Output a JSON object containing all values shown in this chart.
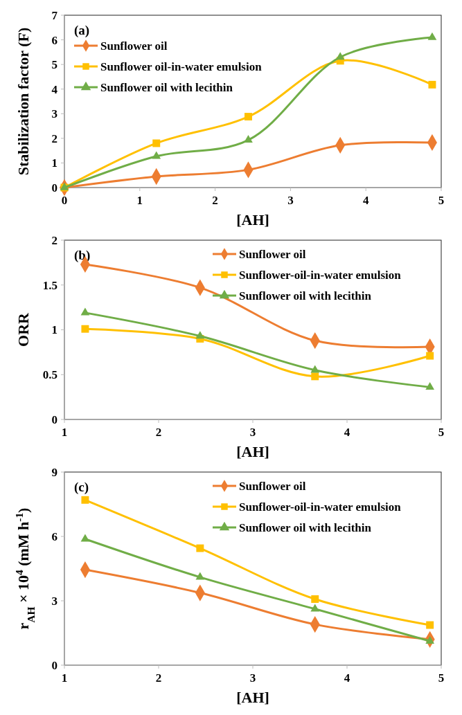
{
  "chart_data": [
    {
      "type": "line",
      "xlabel": "[AH]",
      "ylabel": "Stabilization factor (F)",
      "annotations": [
        "(a)"
      ],
      "x": [
        0,
        1.22,
        2.44,
        3.66,
        4.88
      ],
      "xlim": [
        0,
        5
      ],
      "xticks": [
        0,
        1,
        2,
        3,
        4,
        5
      ],
      "ylim": [
        0,
        7
      ],
      "yticks": [
        0,
        1,
        2,
        3,
        4,
        5,
        6,
        7
      ],
      "legend": "top left",
      "line_style": "solid",
      "series": [
        {
          "name": "Sunflower oil",
          "color": "#ed7d31",
          "marker": "diamond",
          "values": [
            0,
            0.45,
            0.72,
            1.72,
            1.83
          ]
        },
        {
          "name": "Sunflower oil-in-water emulsion",
          "color": "#ffc000",
          "marker": "square",
          "values": [
            0,
            1.8,
            2.88,
            5.15,
            4.18
          ]
        },
        {
          "name": "Sunflower oil with lecithin",
          "color": "#70ad47",
          "marker": "triangle",
          "values": [
            0,
            1.27,
            1.93,
            5.3,
            6.1
          ]
        }
      ]
    },
    {
      "type": "line",
      "xlabel": "[AH]",
      "ylabel": "ORR",
      "annotations": [
        "(b)"
      ],
      "x": [
        1.22,
        2.44,
        3.66,
        4.88
      ],
      "xlim": [
        1,
        5
      ],
      "xticks": [
        1,
        2,
        3,
        4,
        5
      ],
      "ylim": [
        0,
        2
      ],
      "yticks": [
        0,
        0.5,
        1,
        1.5,
        2
      ],
      "legend": "top right",
      "line_style": "solid",
      "series": [
        {
          "name": "Sunflower oil",
          "color": "#ed7d31",
          "marker": "diamond",
          "values": [
            1.73,
            1.47,
            0.88,
            0.81
          ]
        },
        {
          "name": "Sunflower-oil-in-water emulsion",
          "color": "#ffc000",
          "marker": "square",
          "values": [
            1.01,
            0.9,
            0.48,
            0.71
          ]
        },
        {
          "name": "Sunflower oil with lecithin",
          "color": "#70ad47",
          "marker": "triangle",
          "values": [
            1.19,
            0.93,
            0.55,
            0.36
          ]
        }
      ]
    },
    {
      "type": "line",
      "xlabel": "[AH]",
      "ylabel": "r$_{AH}$ × 10$^{4}$ (mM h$^{-1}$)",
      "annotations": [
        "(c)"
      ],
      "x": [
        1.22,
        2.44,
        3.66,
        4.88
      ],
      "xlim": [
        1,
        5
      ],
      "xticks": [
        1,
        2,
        3,
        4,
        5
      ],
      "ylim": [
        0,
        9
      ],
      "yticks": [
        0,
        3,
        6,
        9
      ],
      "legend": "top right",
      "line_style": "solid",
      "series": [
        {
          "name": "Sunflower oil",
          "color": "#ed7d31",
          "marker": "diamond",
          "values": [
            4.45,
            3.37,
            1.9,
            1.2
          ]
        },
        {
          "name": "Sunflower-oil-in-water emulsion",
          "color": "#ffc000",
          "marker": "square",
          "values": [
            7.7,
            5.45,
            3.08,
            1.87
          ]
        },
        {
          "name": "Sunflower oil with lecithin",
          "color": "#70ad47",
          "marker": "triangle",
          "values": [
            5.88,
            4.1,
            2.62,
            1.12
          ]
        }
      ]
    }
  ]
}
